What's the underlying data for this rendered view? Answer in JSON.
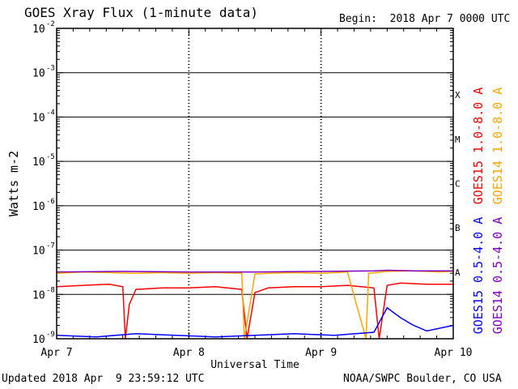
{
  "header": {
    "title": "GOES Xray Flux (1-minute data)",
    "begin": "Begin:  2018 Apr 7 0000 UTC"
  },
  "footer": {
    "updated": "Updated 2018 Apr  9 23:59:12 UTC",
    "credit": "NOAA/SWPC Boulder, CO USA"
  },
  "chart_data": {
    "type": "line",
    "title": "GOES Xray Flux (1-minute data)",
    "xlabel": "Universal Time",
    "ylabel": "Watts m-2",
    "yscale": "log",
    "ylim": [
      1e-09,
      0.01
    ],
    "y_ticks": [
      {
        "base": "10",
        "exp": "-9",
        "value": 1e-09
      },
      {
        "base": "10",
        "exp": "-8",
        "value": 1e-08
      },
      {
        "base": "10",
        "exp": "-7",
        "value": 1e-07
      },
      {
        "base": "10",
        "exp": "-6",
        "value": 1e-06
      },
      {
        "base": "10",
        "exp": "-5",
        "value": 1e-05
      },
      {
        "base": "10",
        "exp": "-4",
        "value": 0.0001
      },
      {
        "base": "10",
        "exp": "-3",
        "value": 0.001
      },
      {
        "base": "10",
        "exp": "-2",
        "value": 0.01
      }
    ],
    "x_ticks": [
      "Apr 7",
      "Apr 8",
      "Apr 9",
      "Apr 10"
    ],
    "xlim_days": [
      0,
      3
    ],
    "flare_classes": [
      {
        "label": "A",
        "value": 1e-08
      },
      {
        "label": "B",
        "value": 1e-07
      },
      {
        "label": "C",
        "value": 1e-06
      },
      {
        "label": "M",
        "value": 1e-05
      },
      {
        "label": "X",
        "value": 0.0001
      }
    ],
    "grid": true,
    "series": [
      {
        "name": "GOES15 1.0-8.0 A",
        "color": "#ff0000",
        "x_days": [
          0.0,
          0.2,
          0.4,
          0.5,
          0.52,
          0.55,
          0.6,
          0.8,
          1.0,
          1.2,
          1.4,
          1.44,
          1.5,
          1.6,
          1.8,
          2.0,
          2.2,
          2.4,
          2.44,
          2.5,
          2.6,
          2.8,
          3.0
        ],
        "values": [
          1.5e-08,
          1.6e-08,
          1.7e-08,
          1.5e-08,
          1e-09,
          6e-09,
          1.3e-08,
          1.4e-08,
          1.4e-08,
          1.5e-08,
          1.3e-08,
          1e-09,
          1.1e-08,
          1.4e-08,
          1.5e-08,
          1.5e-08,
          1.6e-08,
          1.4e-08,
          1e-09,
          1.6e-08,
          1.8e-08,
          1.7e-08,
          1.7e-08
        ]
      },
      {
        "name": "GOES14 1.0-8.0 A",
        "color": "#ffa500",
        "x_days": [
          0.0,
          0.2,
          0.4,
          0.6,
          0.8,
          1.0,
          1.2,
          1.4,
          1.42,
          1.5,
          1.6,
          1.8,
          2.0,
          2.2,
          2.34,
          2.36,
          2.5,
          2.7,
          2.9,
          3.0
        ],
        "values": [
          3e-08,
          3.2e-08,
          3.1e-08,
          3e-08,
          3.1e-08,
          3e-08,
          3.1e-08,
          3e-08,
          1e-09,
          2.9e-08,
          3e-08,
          3.1e-08,
          3e-08,
          3.2e-08,
          1e-09,
          3e-08,
          3.3e-08,
          3.4e-08,
          3.2e-08,
          3.3e-08
        ]
      },
      {
        "name": "GOES15 0.5-4.0 A",
        "color": "#0000ff",
        "x_days": [
          0.0,
          0.3,
          0.6,
          0.9,
          1.2,
          1.5,
          1.8,
          2.1,
          2.4,
          2.5,
          2.6,
          2.7,
          2.8,
          3.0
        ],
        "values": [
          1.2e-09,
          1.1e-09,
          1.3e-09,
          1.2e-09,
          1.1e-09,
          1.2e-09,
          1.3e-09,
          1.2e-09,
          1.4e-09,
          5e-09,
          3e-09,
          2e-09,
          1.5e-09,
          2e-09
        ]
      },
      {
        "name": "GOES14 0.5-4.0 A",
        "color": "#8000c0",
        "x_days": [
          0.0,
          0.5,
          1.0,
          1.5,
          2.0,
          2.4,
          2.5,
          2.7,
          3.0
        ],
        "values": [
          3.2e-08,
          3.3e-08,
          3.2e-08,
          3.2e-08,
          3.3e-08,
          3.4e-08,
          3.5e-08,
          3.4e-08,
          3.4e-08
        ]
      }
    ]
  }
}
